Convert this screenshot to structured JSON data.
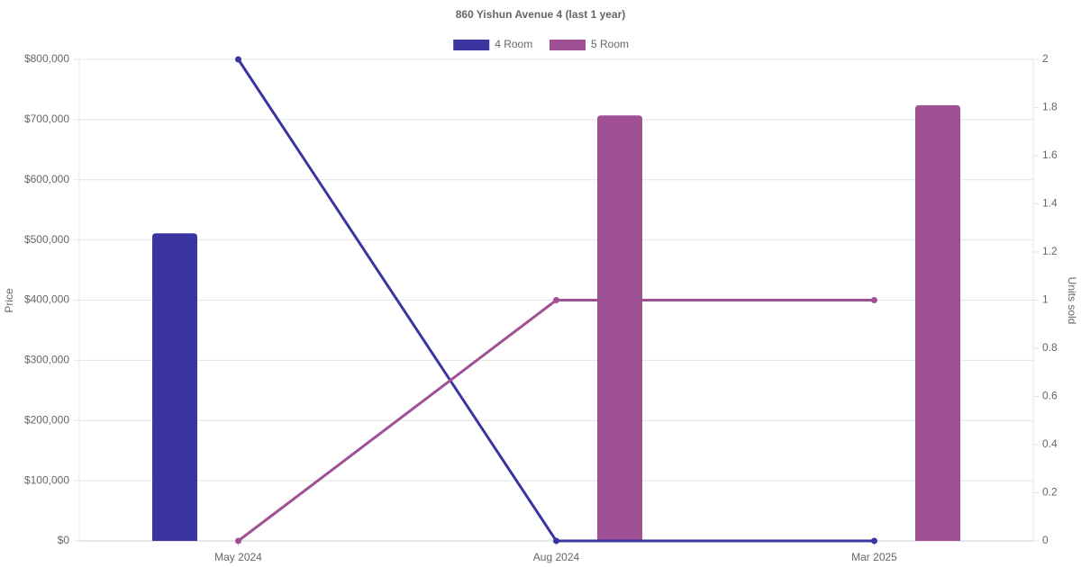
{
  "chart_data": {
    "type": "bar-line",
    "title": "860 Yishun Avenue 4 (last 1 year)",
    "y_label": "Price",
    "y2_label": "Units sold",
    "categories": [
      "May 2024",
      "Aug 2024",
      "Mar 2025"
    ],
    "series": [
      {
        "name": "4 Room",
        "color": "#3a35a0",
        "values": [
          511000,
          null,
          null
        ],
        "units": [
          2,
          0,
          0
        ]
      },
      {
        "name": "5 Room",
        "color": "#a05095",
        "values": [
          null,
          707000,
          724000
        ],
        "units": [
          0,
          1,
          1
        ]
      }
    ],
    "ylim": [
      0,
      800000
    ],
    "yticks": [
      {
        "value": 0,
        "label": "$0"
      },
      {
        "value": 100000,
        "label": "$100,000"
      },
      {
        "value": 200000,
        "label": "$200,000"
      },
      {
        "value": 300000,
        "label": "$300,000"
      },
      {
        "value": 400000,
        "label": "$400,000"
      },
      {
        "value": 500000,
        "label": "$500,000"
      },
      {
        "value": 600000,
        "label": "$600,000"
      },
      {
        "value": 700000,
        "label": "$700,000"
      },
      {
        "value": 800000,
        "label": "$800,000"
      }
    ],
    "y2lim": [
      0,
      2
    ],
    "y2ticks": [
      0,
      0.2,
      0.4,
      0.6,
      0.8,
      1,
      1.2,
      1.4,
      1.6,
      1.8,
      2
    ],
    "grid": true,
    "legend": "top"
  }
}
